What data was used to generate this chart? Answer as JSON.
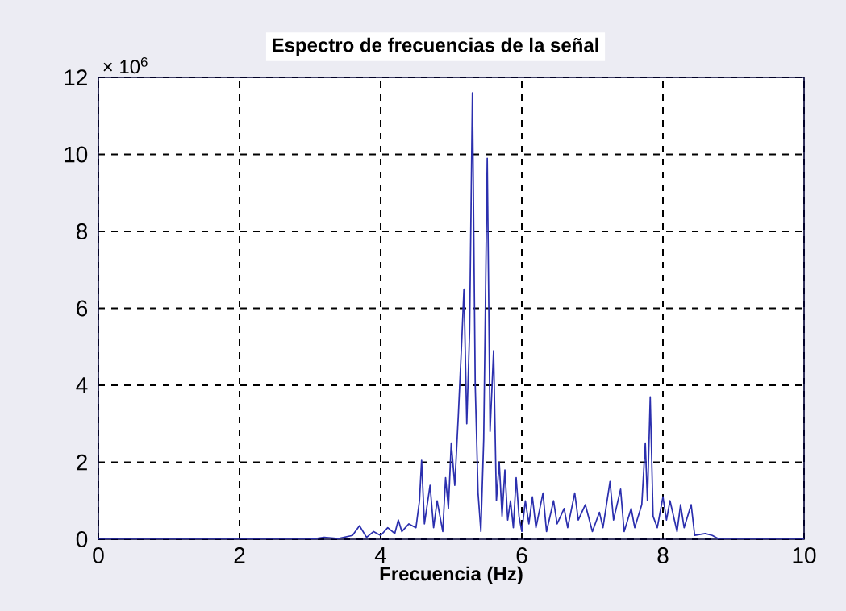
{
  "chart_data": {
    "type": "line",
    "title": "Espectro de frecuencias de la señal",
    "xlabel": "Frecuencia (Hz)",
    "annotations": [
      "× 10$^{6}$"
    ],
    "x": [
      0,
      1,
      2,
      3,
      3.2,
      3.4,
      3.6,
      3.7,
      3.8,
      3.9,
      4.0,
      4.1,
      4.2,
      4.25,
      4.3,
      4.4,
      4.5,
      4.55,
      4.58,
      4.62,
      4.7,
      4.75,
      4.8,
      4.88,
      4.92,
      4.96,
      5.0,
      5.05,
      5.1,
      5.15,
      5.18,
      5.22,
      5.26,
      5.3,
      5.34,
      5.38,
      5.42,
      5.46,
      5.51,
      5.55,
      5.6,
      5.64,
      5.68,
      5.72,
      5.76,
      5.8,
      5.84,
      5.88,
      5.92,
      5.96,
      6.0,
      6.05,
      6.1,
      6.15,
      6.2,
      6.3,
      6.35,
      6.45,
      6.5,
      6.6,
      6.65,
      6.75,
      6.8,
      6.9,
      7.0,
      7.1,
      7.15,
      7.25,
      7.3,
      7.4,
      7.45,
      7.55,
      7.6,
      7.7,
      7.75,
      7.78,
      7.82,
      7.86,
      7.92,
      8.0,
      8.05,
      8.1,
      8.2,
      8.25,
      8.3,
      8.4,
      8.45,
      8.6,
      8.7,
      8.8,
      9,
      10
    ],
    "series": [
      {
        "color": "#2b2fae",
        "values": [
          0,
          0,
          0,
          0,
          0.05,
          0.02,
          0.1,
          0.35,
          0.05,
          0.2,
          0.1,
          0.3,
          0.15,
          0.5,
          0.2,
          0.4,
          0.3,
          1.0,
          2.05,
          0.4,
          1.4,
          0.3,
          1.0,
          0.2,
          1.6,
          0.8,
          2.5,
          1.4,
          3.2,
          5.2,
          6.5,
          3.0,
          5.4,
          11.6,
          4.0,
          1.2,
          0.2,
          2.6,
          9.9,
          2.8,
          4.9,
          1.0,
          2.0,
          0.6,
          1.8,
          0.5,
          1.0,
          0.3,
          1.6,
          0.6,
          0.2,
          1.0,
          0.4,
          1.1,
          0.3,
          1.2,
          0.2,
          1.0,
          0.4,
          0.8,
          0.3,
          1.2,
          0.5,
          0.9,
          0.2,
          0.7,
          0.3,
          1.5,
          0.5,
          1.3,
          0.2,
          0.8,
          0.3,
          0.9,
          2.5,
          1.0,
          3.7,
          0.6,
          0.3,
          1.1,
          0.5,
          1.0,
          0.2,
          0.9,
          0.3,
          0.9,
          0.1,
          0.15,
          0.1,
          0,
          0,
          0
        ]
      }
    ],
    "xlim": [
      0,
      10
    ],
    "ylim": [
      0,
      12
    ],
    "xticks": [
      0,
      2,
      4,
      6,
      8,
      10
    ],
    "yticks": [
      0,
      2,
      4,
      6,
      8,
      10,
      12
    ],
    "grid": true,
    "marker": "none",
    "line_style": "solid"
  }
}
